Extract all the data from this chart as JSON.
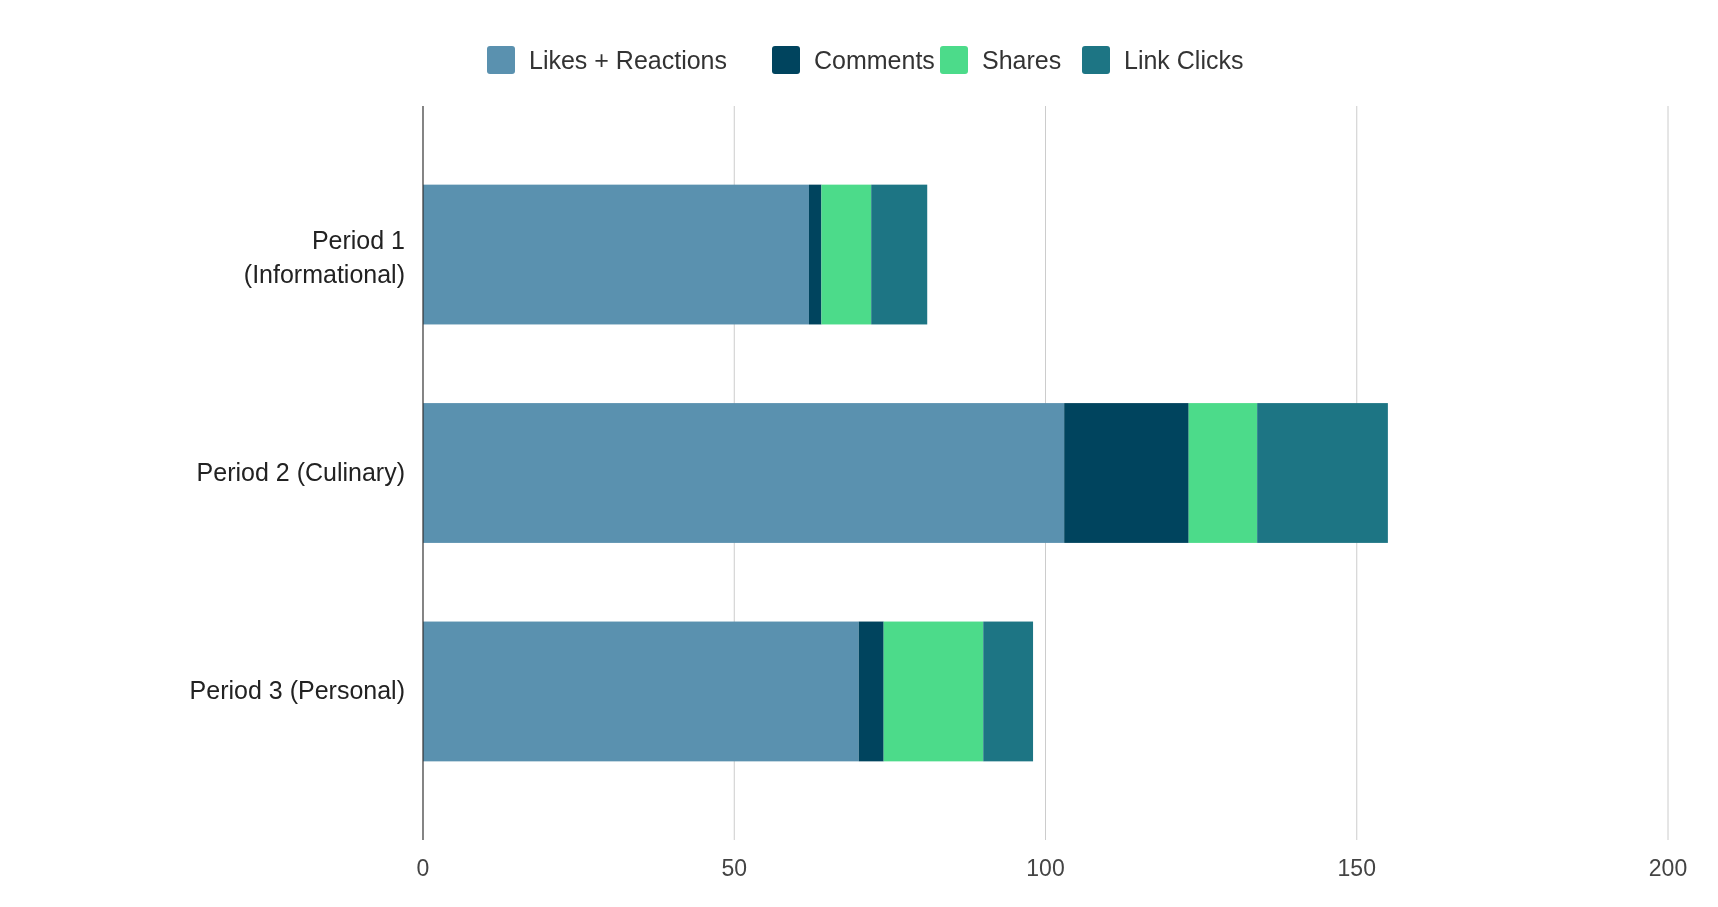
{
  "chart_data": {
    "type": "bar",
    "orientation": "horizontal",
    "stacked": true,
    "categories": [
      "Period 1 (Informational)",
      "Period 2 (Culinary)",
      "Period 3 (Personal)"
    ],
    "series": [
      {
        "name": "Likes + Reactions",
        "color": "#5a91af",
        "values": [
          62,
          103,
          70
        ]
      },
      {
        "name": "Comments",
        "color": "#00445e",
        "values": [
          2,
          20,
          4
        ]
      },
      {
        "name": "Shares",
        "color": "#4cdb8a",
        "values": [
          8,
          11,
          16
        ]
      },
      {
        "name": "Link Clicks",
        "color": "#1d7584",
        "values": [
          9,
          21,
          8
        ]
      }
    ],
    "xlim": [
      0,
      200
    ],
    "xticks": [
      0,
      50,
      100,
      150,
      200
    ],
    "grid": "x",
    "legend": "top"
  }
}
